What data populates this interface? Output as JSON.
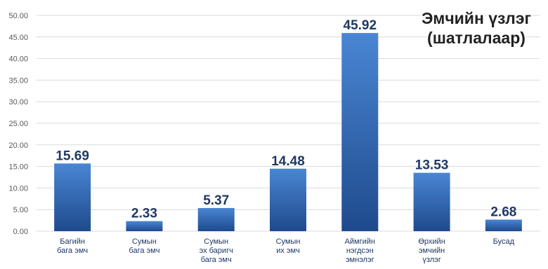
{
  "chart_data": {
    "type": "bar",
    "title_lines": [
      "Эмчийн үзлэг",
      "(шатлалаар)"
    ],
    "categories": [
      [
        "Багийн",
        "бага эмч"
      ],
      [
        "Сумын",
        "бага эмч"
      ],
      [
        "Сумын",
        "эх баригч",
        "бага эмч"
      ],
      [
        "Сумын",
        "их эмч"
      ],
      [
        "Аймгийн",
        "нэгдсэн",
        "эмнэлэг"
      ],
      [
        "Өрхийн",
        "эмчийн",
        "үзлэг"
      ],
      [
        "Бусад"
      ]
    ],
    "values": [
      15.69,
      2.33,
      5.37,
      14.48,
      45.92,
      13.53,
      2.68
    ],
    "value_labels": [
      "15.69",
      "2.33",
      "5.37",
      "14.48",
      "45.92",
      "13.53",
      "2.68"
    ],
    "y_ticks": [
      "0.00",
      "5.00",
      "10.00",
      "15.00",
      "20.00",
      "25.00",
      "30.00",
      "35.00",
      "40.00",
      "45.00",
      "50.00"
    ],
    "ylim": [
      0,
      50
    ],
    "grid": true,
    "legend": "none",
    "colors": {
      "bar_top": "#4a86d4",
      "bar_bottom": "#1e4a8c",
      "label": "#1f3864",
      "grid": "#d9d9d9"
    }
  }
}
